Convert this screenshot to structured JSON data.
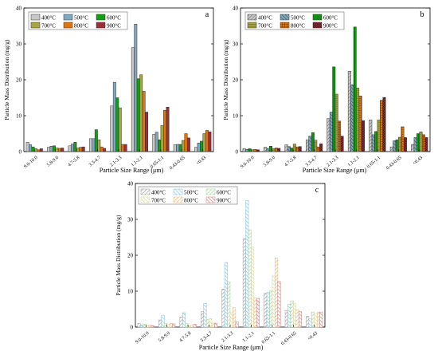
{
  "colors": {
    "400": "#c8c8c8",
    "500": "#7fa9bf",
    "600": "#11a011",
    "700": "#a8a640",
    "800": "#e0740c",
    "900": "#9a2f3a",
    "c_400": "#9a9a9a",
    "c_500": "#7ec0dc",
    "c_600": "#9ad39a",
    "c_700": "#d6d68c",
    "c_800": "#f0b070",
    "c_900": "#d07a7a"
  },
  "chart_data": [
    {
      "type": "bar",
      "panel_label": "a",
      "categories": [
        "9.0-10.0",
        "5.8-9.0",
        "4.7-5.8",
        "3.3-4.7",
        "2.1-3.3",
        "1.1-2.1",
        "0.65-1.1",
        "0.43-0.65",
        "<0.43"
      ],
      "ylabel": "Particle Mass Distribution (mg/g)",
      "xlabel": "Particle Size Range (μm)",
      "ylim": [
        0,
        40
      ],
      "yticks": [
        0,
        10,
        20,
        30,
        40
      ],
      "legend_placement": "top-left",
      "series": [
        {
          "name": "400°C",
          "values": [
            2.6,
            1.2,
            1.6,
            3.6,
            12.7,
            29.0,
            4.8,
            1.9,
            1.2
          ]
        },
        {
          "name": "500°C",
          "values": [
            1.9,
            1.5,
            2.1,
            3.6,
            19.3,
            35.5,
            5.4,
            2.0,
            2.4
          ]
        },
        {
          "name": "600°C",
          "values": [
            1.3,
            1.6,
            2.6,
            6.1,
            15.0,
            20.3,
            3.3,
            2.0,
            2.9
          ]
        },
        {
          "name": "700°C",
          "values": [
            0.8,
            1.0,
            1.0,
            3.3,
            12.2,
            21.4,
            7.3,
            3.1,
            5.0
          ]
        },
        {
          "name": "800°C",
          "values": [
            0.5,
            0.9,
            1.2,
            1.3,
            2.0,
            16.8,
            11.5,
            5.0,
            5.9
          ]
        },
        {
          "name": "900°C",
          "values": [
            0.8,
            1.0,
            1.3,
            0.9,
            2.0,
            11.0,
            12.4,
            3.8,
            5.5
          ]
        }
      ]
    },
    {
      "type": "bar",
      "panel_label": "b",
      "categories": [
        "9.0-10.0",
        "5.8-9.0",
        "4.7-5.8",
        "3.3-4.7",
        "2.1-3.3",
        "1.1-2.1",
        "0.65-1.1",
        "0.43-0.65",
        "<0.43"
      ],
      "ylabel": "Particle Mass Distribution (mg/g)",
      "xlabel": "Particle Size Range (μm)",
      "ylim": [
        0,
        40
      ],
      "yticks": [
        0,
        10,
        20,
        30,
        40
      ],
      "legend_placement": "top-left",
      "series": [
        {
          "name": "400°C",
          "values": [
            0.8,
            1.2,
            1.9,
            3.3,
            9.2,
            22.4,
            8.8,
            1.3,
            2.0
          ]
        },
        {
          "name": "500°C",
          "values": [
            0.6,
            0.9,
            1.4,
            4.3,
            11.0,
            18.6,
            4.7,
            3.0,
            3.9
          ]
        },
        {
          "name": "600°C",
          "values": [
            0.8,
            1.5,
            1.0,
            5.3,
            23.6,
            34.7,
            5.6,
            3.3,
            5.0
          ]
        },
        {
          "name": "700°C",
          "values": [
            0.5,
            0.8,
            2.1,
            3.2,
            16.0,
            17.7,
            8.8,
            4.0,
            5.5
          ]
        },
        {
          "name": "800°C",
          "values": [
            0.6,
            1.0,
            1.3,
            1.3,
            8.5,
            15.5,
            14.3,
            6.9,
            4.7
          ]
        },
        {
          "name": "900°C",
          "values": [
            0.5,
            0.9,
            1.4,
            2.2,
            4.3,
            8.6,
            15.1,
            3.9,
            3.9
          ]
        }
      ]
    },
    {
      "type": "bar",
      "panel_label": "c",
      "categories": [
        "9.0-10.0",
        "5.8-9.0",
        "4.7-5.8",
        "3.3-4.7",
        "2.1-3.3",
        "1.1-2.1",
        "0.65-1.1",
        "0.43-0.65",
        "<0.43"
      ],
      "ylabel": "Particle Mass Distribution (mg/g)",
      "xlabel": "Particle Size Range (μm)",
      "ylim": [
        0,
        40
      ],
      "yticks": [
        0,
        10,
        20,
        30,
        40
      ],
      "legend_placement": "top-left",
      "series": [
        {
          "name": "400°C",
          "values": [
            1.0,
            2.0,
            2.8,
            4.3,
            10.6,
            24.6,
            9.4,
            4.6,
            3.0
          ]
        },
        {
          "name": "500°C",
          "values": [
            0.6,
            3.3,
            4.0,
            6.6,
            18.0,
            35.3,
            9.6,
            6.4,
            2.4
          ]
        },
        {
          "name": "600°C",
          "values": [
            0.8,
            1.0,
            1.0,
            2.1,
            12.5,
            27.1,
            10.1,
            7.3,
            4.2
          ]
        },
        {
          "name": "700°C",
          "values": [
            0.4,
            0.8,
            0.4,
            2.4,
            4.2,
            22.3,
            14.4,
            6.5,
            3.8
          ]
        },
        {
          "name": "800°C",
          "values": [
            0.6,
            1.0,
            0.5,
            1.1,
            5.4,
            8.1,
            19.2,
            4.8,
            4.2
          ]
        },
        {
          "name": "900°C",
          "values": [
            0.4,
            0.9,
            0.8,
            1.1,
            1.5,
            8.0,
            12.7,
            4.3,
            4.2
          ]
        }
      ]
    }
  ]
}
